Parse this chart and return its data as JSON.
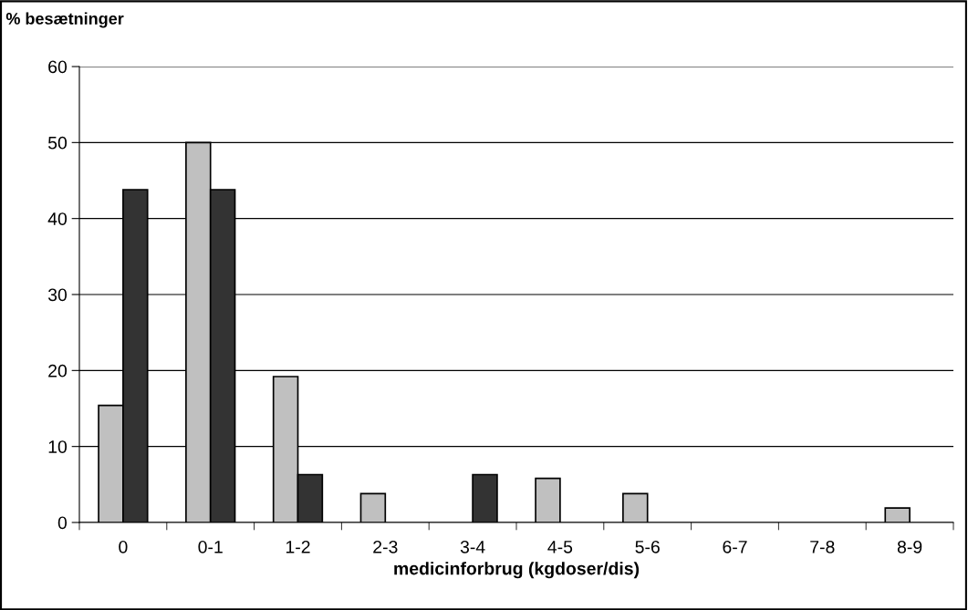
{
  "chart_data": {
    "type": "bar",
    "ylabel": "% besætninger",
    "xlabel": "medicinforbrug (kgdoser/dis)",
    "categories": [
      "0",
      "0-1",
      "1-2",
      "2-3",
      "3-4",
      "4-5",
      "5-6",
      "6-7",
      "7-8",
      "8-9"
    ],
    "series": [
      {
        "color": "#c0c0c0",
        "values": [
          15.4,
          50,
          19.2,
          3.8,
          null,
          5.8,
          3.8,
          null,
          null,
          1.9
        ]
      },
      {
        "color": "#333333",
        "values": [
          43.8,
          43.8,
          6.3,
          null,
          6.3,
          null,
          null,
          null,
          null,
          null
        ]
      }
    ],
    "ylim": [
      0,
      60
    ],
    "yticks": [
      0,
      10,
      20,
      30,
      40,
      50,
      60
    ],
    "grid": "y",
    "legend": false
  }
}
